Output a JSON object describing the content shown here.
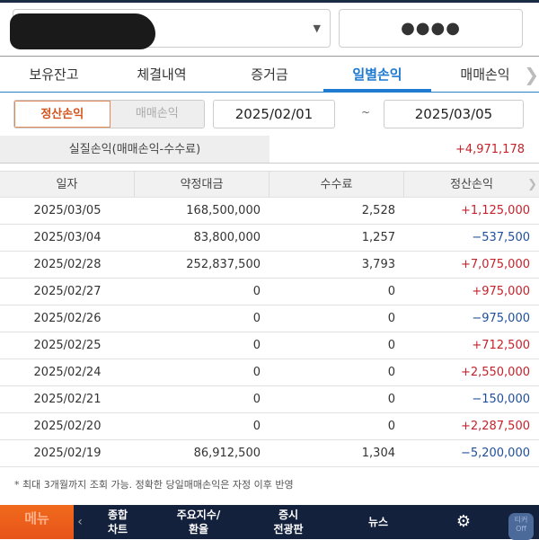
{
  "account": {
    "password_mask": "●●●●"
  },
  "tabs": [
    "보유잔고",
    "체결내역",
    "증거금",
    "일별손익",
    "매매손익"
  ],
  "active_tab": "일별손익",
  "segment": {
    "selected": "정산손익",
    "other": "매매손익"
  },
  "date_from": "2025/02/01",
  "date_sep": "~",
  "date_to": "2025/03/05",
  "summary": {
    "label": "실질손익(매매손익-수수료)",
    "value": "+4,971,178"
  },
  "table": {
    "headers": [
      "일자",
      "약정대금",
      "수수료",
      "정산손익"
    ],
    "rows": [
      [
        "2025/03/05",
        "168,500,000",
        "2,528",
        "+1,125,000"
      ],
      [
        "2025/03/04",
        "83,800,000",
        "1,257",
        "−537,500"
      ],
      [
        "2025/02/28",
        "252,837,500",
        "3,793",
        "+7,075,000"
      ],
      [
        "2025/02/27",
        "0",
        "0",
        "+975,000"
      ],
      [
        "2025/02/26",
        "0",
        "0",
        "−975,000"
      ],
      [
        "2025/02/25",
        "0",
        "0",
        "+712,500"
      ],
      [
        "2025/02/24",
        "0",
        "0",
        "+2,550,000"
      ],
      [
        "2025/02/21",
        "0",
        "0",
        "−150,000"
      ],
      [
        "2025/02/20",
        "0",
        "0",
        "+2,287,500"
      ],
      [
        "2025/02/19",
        "86,912,500",
        "1,304",
        "−5,200,000"
      ]
    ]
  },
  "note": "* 최대 3개월까지 조회 가능. 정확한 당일매매손익은 자정 이후 반영",
  "bottom_nav": {
    "menu": "메뉴",
    "items": [
      [
        "종합",
        "차트"
      ],
      [
        "주요지수/",
        "환율"
      ],
      [
        "증시",
        "전광판"
      ],
      [
        "뉴스",
        ""
      ]
    ],
    "ticker": [
      "티커",
      "Off"
    ]
  },
  "colors": {
    "accent": "#1e7ad0",
    "positive": "#c5222b",
    "negative": "#1f4f9a",
    "menu": "#e8541a",
    "nav_bg": "#13213d"
  }
}
